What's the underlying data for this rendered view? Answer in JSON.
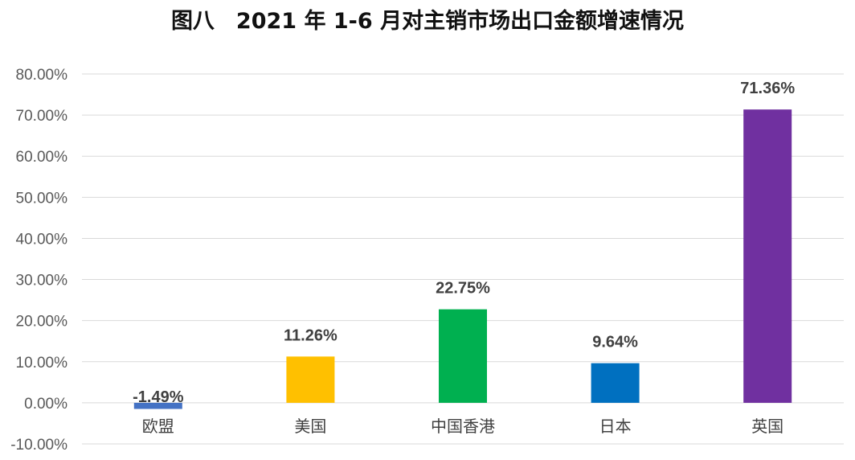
{
  "chart_data": {
    "type": "bar",
    "title": "图八　2021 年 1-6 月对主销市场出口金额增速情况",
    "xlabel": "",
    "ylabel": "",
    "categories": [
      "欧盟",
      "美国",
      "中国香港",
      "日本",
      "英国"
    ],
    "values": [
      -1.49,
      11.26,
      22.75,
      9.64,
      71.36
    ],
    "data_labels": [
      "-1.49%",
      "11.26%",
      "22.75%",
      "9.64%",
      "71.36%"
    ],
    "colors": [
      "#4472C4",
      "#FFC000",
      "#00B050",
      "#0070C0",
      "#7030A0"
    ],
    "ylim": [
      -10,
      80
    ],
    "yticks": [
      80,
      70,
      60,
      50,
      40,
      30,
      20,
      10,
      0,
      -10
    ],
    "ytick_labels": [
      "80.00%",
      "70.00%",
      "60.00%",
      "50.00%",
      "40.00%",
      "30.00%",
      "20.00%",
      "10.00%",
      "0.00%",
      "-10.00%"
    ],
    "grid": true,
    "legend": "none"
  }
}
